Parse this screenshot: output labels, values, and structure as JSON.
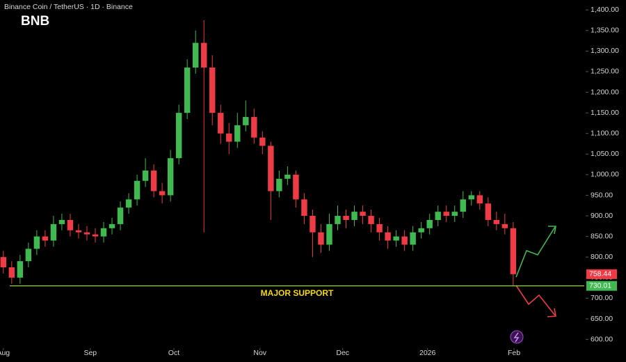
{
  "chart_data": {
    "type": "candlestick",
    "title": "Binance Coin / TetherUS · 1D · Binance",
    "symbol": "BNB",
    "annotation": "MAJOR SUPPORT",
    "up_color": "#3fb950",
    "down_color": "#ef3b45",
    "series": {
      "open": [
        800,
        775,
        750,
        790,
        820,
        850,
        840,
        880,
        890,
        865,
        860,
        855,
        850,
        870,
        880,
        920,
        940,
        985,
        1010,
        960,
        950,
        1040,
        1150,
        1260,
        1320,
        1260,
        1150,
        1100,
        1080,
        1120,
        1140,
        1090,
        1070,
        960,
        990,
        1000,
        940,
        900,
        860,
        830,
        880,
        900,
        890,
        910,
        900,
        880,
        860,
        840,
        850,
        830,
        860,
        870,
        890,
        910,
        900,
        910,
        940,
        950,
        930,
        890,
        880,
        870
      ],
      "high": [
        815,
        790,
        805,
        835,
        865,
        865,
        900,
        905,
        905,
        880,
        875,
        870,
        885,
        895,
        935,
        955,
        1000,
        1040,
        1025,
        980,
        1060,
        1170,
        1280,
        1350,
        1375,
        1290,
        1170,
        1125,
        1150,
        1180,
        1160,
        1105,
        1080,
        1010,
        1020,
        1010,
        955,
        915,
        880,
        905,
        925,
        915,
        925,
        925,
        915,
        895,
        875,
        865,
        865,
        875,
        885,
        905,
        925,
        925,
        925,
        960,
        960,
        960,
        945,
        910,
        905,
        885
      ],
      "low": [
        760,
        735,
        735,
        775,
        805,
        825,
        825,
        865,
        850,
        845,
        840,
        835,
        835,
        855,
        865,
        905,
        925,
        970,
        945,
        930,
        935,
        1025,
        1135,
        1245,
        860,
        1120,
        1075,
        1050,
        1065,
        1105,
        1075,
        1050,
        890,
        945,
        975,
        920,
        880,
        800,
        810,
        815,
        865,
        870,
        875,
        880,
        860,
        840,
        820,
        825,
        815,
        815,
        845,
        855,
        875,
        885,
        885,
        895,
        925,
        915,
        875,
        865,
        855,
        730
      ],
      "close": [
        775,
        750,
        790,
        820,
        850,
        840,
        880,
        890,
        865,
        860,
        855,
        850,
        870,
        880,
        920,
        940,
        985,
        1010,
        960,
        950,
        1040,
        1150,
        1260,
        1320,
        1260,
        1150,
        1100,
        1080,
        1120,
        1140,
        1090,
        1070,
        960,
        990,
        1000,
        940,
        900,
        860,
        830,
        880,
        900,
        890,
        910,
        900,
        880,
        860,
        840,
        850,
        830,
        860,
        870,
        890,
        910,
        900,
        910,
        940,
        950,
        930,
        890,
        880,
        870,
        758.44
      ]
    },
    "last_price": 758.44,
    "support_level": 730.01,
    "xlim": [
      -0.4,
      69.5
    ],
    "xticks": [
      {
        "value": 0,
        "label": "Aug"
      },
      {
        "value": 10.4,
        "label": "Sep"
      },
      {
        "value": 20.4,
        "label": "Oct"
      },
      {
        "value": 30.7,
        "label": "Nov"
      },
      {
        "value": 40.6,
        "label": "Dec"
      },
      {
        "value": 50.75,
        "label": "2026"
      },
      {
        "value": 61.1,
        "label": "Feb"
      }
    ],
    "ylim": [
      579,
      1424
    ],
    "yticks": [
      {
        "value": 1400,
        "label": "1,400.00"
      },
      {
        "value": 1350,
        "label": "1,350.00"
      },
      {
        "value": 1300,
        "label": "1,300.00"
      },
      {
        "value": 1250,
        "label": "1,250.00"
      },
      {
        "value": 1200,
        "label": "1,200.00"
      },
      {
        "value": 1150,
        "label": "1,150.00"
      },
      {
        "value": 1100,
        "label": "1,100.00"
      },
      {
        "value": 1050,
        "label": "1,050.00"
      },
      {
        "value": 1000,
        "label": "1,000.00"
      },
      {
        "value": 950,
        "label": "950.00"
      },
      {
        "value": 900,
        "label": "900.00"
      },
      {
        "value": 850,
        "label": "850.00"
      },
      {
        "value": 800,
        "label": "800.00"
      },
      {
        "value": 750,
        "label": "750.00"
      },
      {
        "value": 700,
        "label": "700.00"
      },
      {
        "value": 650,
        "label": "650.00"
      },
      {
        "value": 600,
        "label": "600.00"
      }
    ]
  }
}
